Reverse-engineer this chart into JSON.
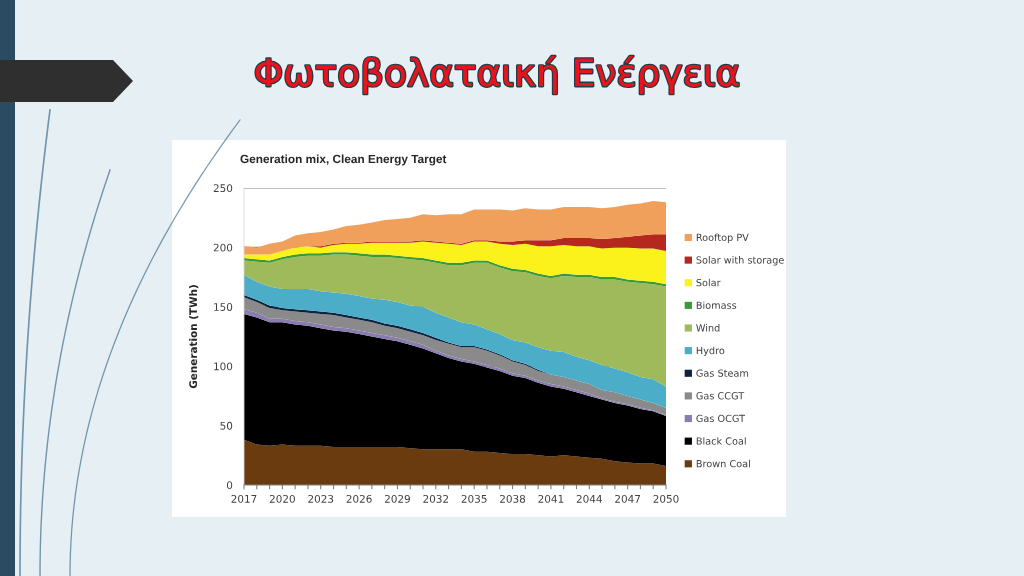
{
  "chart_data": {
    "type": "area",
    "title": "Φωτοβολαταική Ενέργεια",
    "subtitle": "Generation mix, Clean Energy Target",
    "ylabel": "Generation (TWh)",
    "stacked": true,
    "grid": "y",
    "legend": "right",
    "x": [
      2017,
      2018,
      2019,
      2020,
      2021,
      2022,
      2023,
      2024,
      2025,
      2026,
      2027,
      2028,
      2029,
      2030,
      2031,
      2032,
      2033,
      2034,
      2035,
      2036,
      2037,
      2038,
      2039,
      2040,
      2041,
      2042,
      2043,
      2044,
      2045,
      2046,
      2047,
      2048,
      2049,
      2050
    ],
    "xlim": [
      2017,
      2050
    ],
    "ylim": [
      0,
      250
    ],
    "yticks": [
      0,
      50,
      100,
      150,
      200,
      250
    ],
    "xticks": [
      2017,
      {
        "value": 2018,
        "label": null
      },
      {
        "value": 2019,
        "label": null
      },
      2020,
      {
        "value": 2021,
        "label": null
      },
      {
        "value": 2022,
        "label": null
      },
      2023,
      {
        "value": 2024,
        "label": null
      },
      {
        "value": 2025,
        "label": null
      },
      2026,
      {
        "value": 2027,
        "label": null
      },
      {
        "value": 2028,
        "label": null
      },
      2029,
      {
        "value": 2030,
        "label": null
      },
      {
        "value": 2031,
        "label": null
      },
      2032,
      {
        "value": 2033,
        "label": null
      },
      {
        "value": 2034,
        "label": null
      },
      2035,
      {
        "value": 2036,
        "label": null
      },
      {
        "value": 2037,
        "label": null
      },
      2038,
      {
        "value": 2039,
        "label": null
      },
      {
        "value": 2040,
        "label": null
      },
      2041,
      {
        "value": 2042,
        "label": null
      },
      {
        "value": 2043,
        "label": null
      },
      2044,
      {
        "value": 2045,
        "label": null
      },
      {
        "value": 2046,
        "label": null
      },
      2047,
      {
        "value": 2048,
        "label": null
      },
      {
        "value": 2049,
        "label": null
      },
      2050
    ],
    "series": [
      {
        "name": "Brown Coal",
        "color": "#6b3b10",
        "values": [
          38,
          34,
          33,
          34,
          33,
          33,
          33,
          32,
          32,
          32,
          32,
          32,
          32,
          31,
          30,
          30,
          30,
          30,
          28,
          28,
          27,
          26,
          26,
          25,
          24,
          25,
          24,
          23,
          22,
          20,
          19,
          18,
          18,
          16
        ]
      },
      {
        "name": "Black Coal",
        "color": "#000000",
        "values": [
          106,
          107,
          104,
          103,
          102,
          101,
          99,
          98,
          97,
          95,
          93,
          91,
          89,
          87,
          85,
          81,
          77,
          74,
          74,
          71,
          69,
          66,
          64,
          61,
          59,
          56,
          54,
          52,
          50,
          49,
          48,
          46,
          44,
          42
        ]
      },
      {
        "name": "Gas OCGT",
        "color": "#8a7bb0",
        "values": [
          4,
          4,
          3,
          3,
          3,
          3,
          3,
          3,
          3,
          3,
          3,
          3,
          3,
          3,
          3,
          2,
          2,
          2,
          2,
          2,
          2,
          2,
          2,
          2,
          2,
          2,
          2,
          2,
          1,
          1,
          1,
          1,
          1,
          1
        ]
      },
      {
        "name": "Gas CCGT",
        "color": "#8a8a8a",
        "values": [
          10,
          9,
          9,
          7,
          8,
          8,
          9,
          10,
          9,
          9,
          9,
          8,
          8,
          8,
          8,
          9,
          10,
          10,
          12,
          12,
          11,
          10,
          9,
          8,
          8,
          8,
          8,
          8,
          7,
          8,
          7,
          7,
          6,
          6
        ]
      },
      {
        "name": "Gas Steam",
        "color": "#0d2340",
        "values": [
          2,
          2,
          2,
          2,
          2,
          2,
          2,
          2,
          2,
          2,
          2,
          2,
          2,
          2,
          2,
          2,
          1,
          1,
          1,
          1,
          1,
          1,
          1,
          1,
          0,
          0,
          0,
          0,
          0,
          0,
          0,
          0,
          0,
          0
        ]
      },
      {
        "name": "Hydro",
        "color": "#4badc8",
        "values": [
          17,
          15,
          16,
          16,
          17,
          18,
          17,
          17,
          18,
          18,
          18,
          20,
          20,
          20,
          22,
          21,
          21,
          20,
          18,
          17,
          17,
          17,
          18,
          19,
          20,
          21,
          20,
          20,
          21,
          20,
          20,
          19,
          20,
          18
        ]
      },
      {
        "name": "Wind",
        "color": "#9fba5a",
        "values": [
          12,
          17,
          20,
          25,
          27,
          28,
          30,
          32,
          33,
          34,
          35,
          36,
          37,
          39,
          39,
          42,
          44,
          48,
          52,
          56,
          56,
          58,
          59,
          60,
          61,
          64,
          67,
          70,
          72,
          75,
          76,
          79,
          80,
          84
        ]
      },
      {
        "name": "Biomass",
        "color": "#3c9a35",
        "values": [
          2,
          2,
          2,
          2,
          2,
          2,
          2,
          2,
          2,
          2,
          2,
          2,
          2,
          2,
          2,
          2,
          2,
          2,
          2,
          2,
          2,
          2,
          2,
          2,
          2,
          2,
          2,
          2,
          2,
          2,
          2,
          2,
          2,
          2
        ]
      },
      {
        "name": "Solar",
        "color": "#fbf21c",
        "values": [
          3,
          4,
          5,
          5,
          6,
          6,
          5,
          6,
          7,
          8,
          10,
          10,
          11,
          12,
          14,
          15,
          16,
          15,
          16,
          16,
          18,
          20,
          22,
          23,
          25,
          24,
          24,
          24,
          24,
          25,
          27,
          27,
          28,
          28
        ]
      },
      {
        "name": "Solar with storage",
        "color": "#b5281e",
        "values": [
          0,
          0,
          0,
          0,
          0,
          0,
          1,
          1,
          1,
          1,
          1,
          1,
          1,
          1,
          1,
          1,
          1,
          1,
          1,
          1,
          2,
          3,
          3,
          5,
          5,
          6,
          7,
          7,
          8,
          8,
          9,
          11,
          12,
          14
        ]
      },
      {
        "name": "Rooftop PV",
        "color": "#f0a05a",
        "values": [
          7,
          6,
          9,
          8,
          10,
          11,
          12,
          12,
          14,
          15,
          16,
          18,
          19,
          20,
          22,
          22,
          24,
          25,
          26,
          26,
          27,
          26,
          27,
          26,
          26,
          26,
          26,
          26,
          26,
          26,
          27,
          27,
          28,
          27
        ]
      }
    ]
  }
}
